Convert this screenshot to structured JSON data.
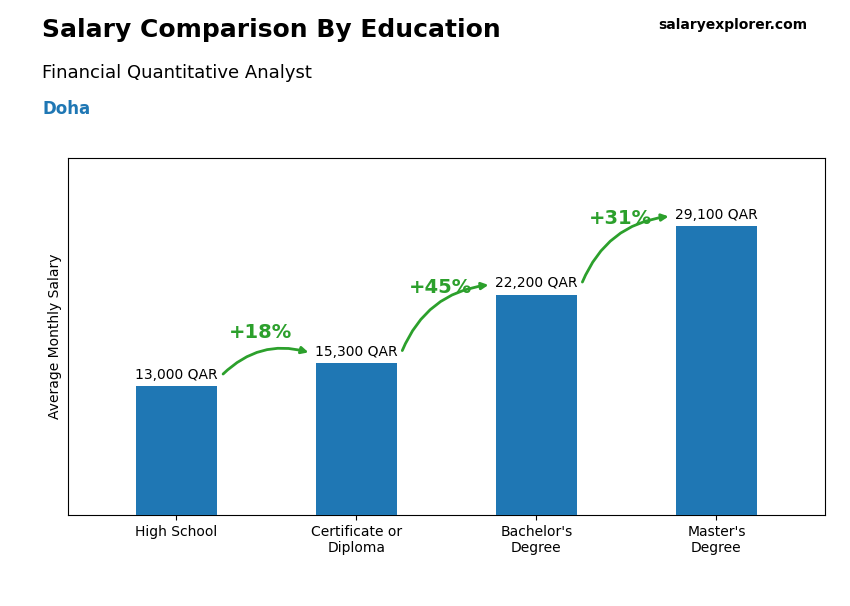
{
  "chart_data": {
    "type": "bar",
    "title": "Salary Comparison By Education",
    "subtitle": "Financial Quantitative Analyst",
    "ylabel": "Average Monthly Salary",
    "categories": [
      "High School",
      "Certificate or\nDiploma",
      "Bachelor's\nDegree",
      "Master's\nDegree"
    ],
    "values": [
      13000,
      15300,
      22200,
      29100
    ],
    "value_labels": [
      "13,000 QAR",
      "15,300 QAR",
      "22,200 QAR",
      "29,100 QAR"
    ],
    "data_labels": true,
    "change_labels": [
      "+18%",
      "+45%",
      "+31%"
    ],
    "annotations": [
      "Doha",
      "salaryexplorer.com"
    ],
    "ylim": [
      0,
      36000
    ],
    "tick_labels": "x"
  }
}
